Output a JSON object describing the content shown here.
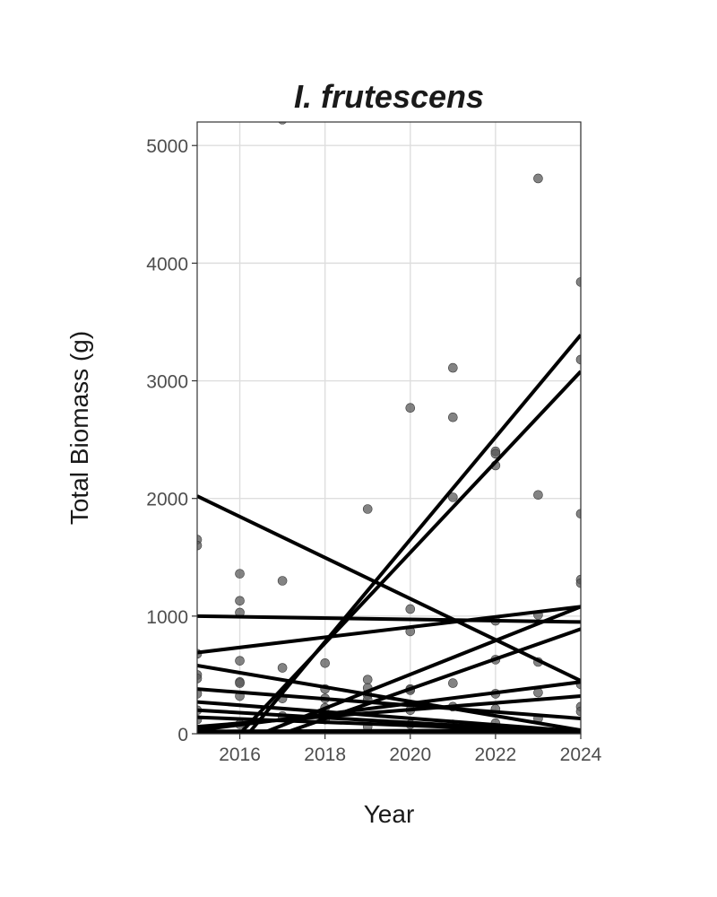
{
  "chart_data": {
    "type": "scatter",
    "title": "I. frutescens",
    "xlabel": "Year",
    "ylabel": "Total Biomass (g)",
    "xlim": [
      2015,
      2024
    ],
    "ylim": [
      0,
      5200
    ],
    "xticks": [
      2016,
      2018,
      2020,
      2022,
      2024
    ],
    "yticks": [
      0,
      1000,
      2000,
      3000,
      4000,
      5000
    ],
    "grid": true,
    "legend": "none",
    "colors": {
      "points": "#595959",
      "lines": "#000000",
      "grid": "#dedede",
      "frame": "#333333"
    },
    "points": [
      {
        "x": 2015,
        "y": 1650
      },
      {
        "x": 2015,
        "y": 1600
      },
      {
        "x": 2015,
        "y": 680
      },
      {
        "x": 2015,
        "y": 500
      },
      {
        "x": 2015,
        "y": 470
      },
      {
        "x": 2015,
        "y": 340
      },
      {
        "x": 2015,
        "y": 200
      },
      {
        "x": 2015,
        "y": 120
      },
      {
        "x": 2016,
        "y": 1360
      },
      {
        "x": 2016,
        "y": 1130
      },
      {
        "x": 2016,
        "y": 1030
      },
      {
        "x": 2016,
        "y": 620
      },
      {
        "x": 2016,
        "y": 440
      },
      {
        "x": 2016,
        "y": 430
      },
      {
        "x": 2016,
        "y": 320
      },
      {
        "x": 2016,
        "y": 80
      },
      {
        "x": 2017,
        "y": 5220
      },
      {
        "x": 2017,
        "y": 1300
      },
      {
        "x": 2017,
        "y": 560
      },
      {
        "x": 2017,
        "y": 300
      },
      {
        "x": 2017,
        "y": 150
      },
      {
        "x": 2018,
        "y": 600
      },
      {
        "x": 2018,
        "y": 380
      },
      {
        "x": 2018,
        "y": 300
      },
      {
        "x": 2018,
        "y": 220
      },
      {
        "x": 2018,
        "y": 120
      },
      {
        "x": 2019,
        "y": 1910
      },
      {
        "x": 2019,
        "y": 460
      },
      {
        "x": 2019,
        "y": 390
      },
      {
        "x": 2019,
        "y": 330
      },
      {
        "x": 2019,
        "y": 290
      },
      {
        "x": 2019,
        "y": 60
      },
      {
        "x": 2020,
        "y": 2770
      },
      {
        "x": 2020,
        "y": 1060
      },
      {
        "x": 2020,
        "y": 870
      },
      {
        "x": 2020,
        "y": 380
      },
      {
        "x": 2020,
        "y": 370
      },
      {
        "x": 2020,
        "y": 200
      },
      {
        "x": 2020,
        "y": 80
      },
      {
        "x": 2021,
        "y": 3110
      },
      {
        "x": 2021,
        "y": 2690
      },
      {
        "x": 2021,
        "y": 2010
      },
      {
        "x": 2021,
        "y": 430
      },
      {
        "x": 2021,
        "y": 230
      },
      {
        "x": 2021,
        "y": 80
      },
      {
        "x": 2022,
        "y": 2400
      },
      {
        "x": 2022,
        "y": 2380
      },
      {
        "x": 2022,
        "y": 2280
      },
      {
        "x": 2022,
        "y": 960
      },
      {
        "x": 2022,
        "y": 630
      },
      {
        "x": 2022,
        "y": 340
      },
      {
        "x": 2022,
        "y": 210
      },
      {
        "x": 2022,
        "y": 90
      },
      {
        "x": 2023,
        "y": 4720
      },
      {
        "x": 2023,
        "y": 2030
      },
      {
        "x": 2023,
        "y": 1010
      },
      {
        "x": 2023,
        "y": 610
      },
      {
        "x": 2023,
        "y": 350
      },
      {
        "x": 2023,
        "y": 130
      },
      {
        "x": 2024,
        "y": 3840
      },
      {
        "x": 2024,
        "y": 3180
      },
      {
        "x": 2024,
        "y": 1870
      },
      {
        "x": 2024,
        "y": 1310
      },
      {
        "x": 2024,
        "y": 1280
      },
      {
        "x": 2024,
        "y": 420
      },
      {
        "x": 2024,
        "y": 230
      },
      {
        "x": 2024,
        "y": 190
      }
    ],
    "lines": [
      {
        "x": [
          2016.2,
          2024
        ],
        "y": [
          0,
          3390
        ]
      },
      {
        "x": [
          2016.0,
          2024
        ],
        "y": [
          0,
          3080
        ]
      },
      {
        "x": [
          2015,
          2024
        ],
        "y": [
          2020,
          450
        ]
      },
      {
        "x": [
          2015,
          2024
        ],
        "y": [
          1000,
          950
        ]
      },
      {
        "x": [
          2015,
          2024
        ],
        "y": [
          690,
          1080
        ]
      },
      {
        "x": [
          2016.5,
          2024
        ],
        "y": [
          0,
          1080
        ]
      },
      {
        "x": [
          2017.0,
          2024
        ],
        "y": [
          0,
          890
        ]
      },
      {
        "x": [
          2015,
          2024
        ],
        "y": [
          580,
          30
        ]
      },
      {
        "x": [
          2015,
          2024
        ],
        "y": [
          380,
          130
        ]
      },
      {
        "x": [
          2015,
          2024
        ],
        "y": [
          30,
          440
        ]
      },
      {
        "x": [
          2015,
          2024
        ],
        "y": [
          270,
          20
        ]
      },
      {
        "x": [
          2015,
          2024
        ],
        "y": [
          60,
          320
        ]
      },
      {
        "x": [
          2015,
          2024
        ],
        "y": [
          200,
          10
        ]
      },
      {
        "x": [
          2015,
          2024
        ],
        "y": [
          140,
          15
        ]
      },
      {
        "x": [
          2015,
          2024
        ],
        "y": [
          20,
          30
        ]
      },
      {
        "x": [
          2015,
          2024
        ],
        "y": [
          10,
          10
        ]
      }
    ]
  }
}
